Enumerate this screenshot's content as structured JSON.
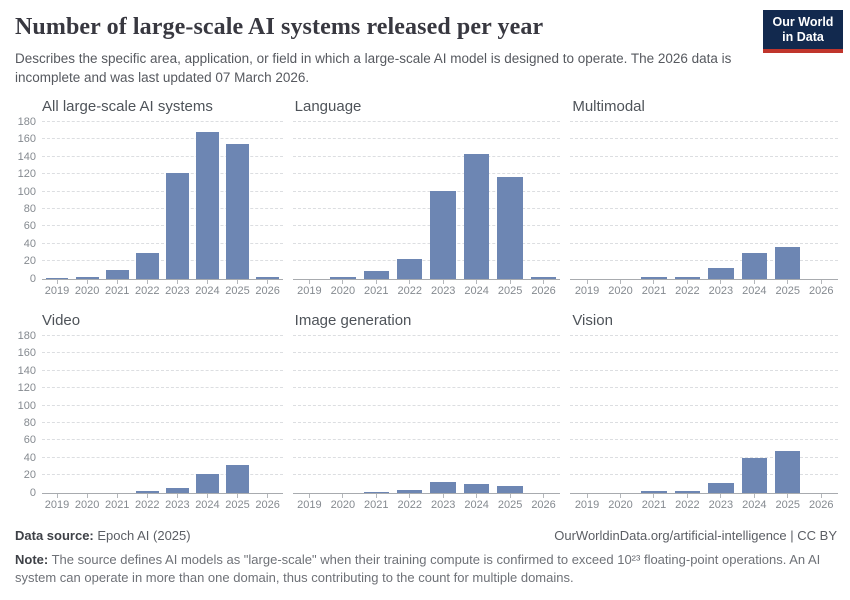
{
  "header": {
    "title": "Number of large-scale AI systems released per year",
    "subtitle": "Describes the specific area, application, or field in which a large-scale AI model is designed to operate. The 2026 data is incomplete and was last updated 07 March 2026.",
    "logo": {
      "line1": "Our World",
      "line2": "in Data",
      "bg_color": "#12294e",
      "accent_color": "#c0352c"
    }
  },
  "chart_style": {
    "bar_color": "#6d86b3",
    "grid_color": "#dcdee1",
    "axis_color": "#a8abaf",
    "tick_label_color": "#858a90"
  },
  "chart_data": [
    {
      "type": "bar",
      "title": "All large-scale AI systems",
      "categories": [
        "2019",
        "2020",
        "2021",
        "2022",
        "2023",
        "2024",
        "2025",
        "2026"
      ],
      "values": [
        1,
        2,
        10,
        30,
        121,
        168,
        154,
        2
      ],
      "ylim": [
        0,
        180
      ],
      "ytick_interval": 20,
      "grid": true,
      "show_y_axis_labels": true
    },
    {
      "type": "bar",
      "title": "Language",
      "categories": [
        "2019",
        "2020",
        "2021",
        "2022",
        "2023",
        "2024",
        "2025",
        "2026"
      ],
      "values": [
        0,
        2,
        9,
        23,
        101,
        143,
        117,
        2
      ],
      "ylim": [
        0,
        180
      ],
      "ytick_interval": 20,
      "grid": true,
      "show_y_axis_labels": false
    },
    {
      "type": "bar",
      "title": "Multimodal",
      "categories": [
        "2019",
        "2020",
        "2021",
        "2022",
        "2023",
        "2024",
        "2025",
        "2026"
      ],
      "values": [
        0,
        0,
        2,
        2,
        12,
        30,
        37,
        0
      ],
      "ylim": [
        0,
        180
      ],
      "ytick_interval": 20,
      "grid": true,
      "show_y_axis_labels": false
    },
    {
      "type": "bar",
      "title": "Video",
      "categories": [
        "2019",
        "2020",
        "2021",
        "2022",
        "2023",
        "2024",
        "2025",
        "2026"
      ],
      "values": [
        0,
        0,
        0,
        2,
        6,
        21,
        32,
        0
      ],
      "ylim": [
        0,
        180
      ],
      "ytick_interval": 20,
      "grid": true,
      "show_y_axis_labels": true
    },
    {
      "type": "bar",
      "title": "Image generation",
      "categories": [
        "2019",
        "2020",
        "2021",
        "2022",
        "2023",
        "2024",
        "2025",
        "2026"
      ],
      "values": [
        0,
        0,
        1,
        3,
        12,
        10,
        8,
        0
      ],
      "ylim": [
        0,
        180
      ],
      "ytick_interval": 20,
      "grid": true,
      "show_y_axis_labels": false
    },
    {
      "type": "bar",
      "title": "Vision",
      "categories": [
        "2019",
        "2020",
        "2021",
        "2022",
        "2023",
        "2024",
        "2025",
        "2026"
      ],
      "values": [
        0,
        0,
        2,
        2,
        11,
        40,
        48,
        0
      ],
      "ylim": [
        0,
        180
      ],
      "ytick_interval": 20,
      "grid": true,
      "show_y_axis_labels": false
    }
  ],
  "footer": {
    "datasource_label": "Data source:",
    "datasource_value": " Epoch AI (2025)",
    "attribution": "OurWorldinData.org/artificial-intelligence | CC BY",
    "note_label": "Note:",
    "note_text": " The source defines AI models as \"large-scale\" when their training compute is confirmed to exceed 10²³ floating-point operations. An AI system can operate in more than one domain, thus contributing to the count for multiple domains."
  }
}
